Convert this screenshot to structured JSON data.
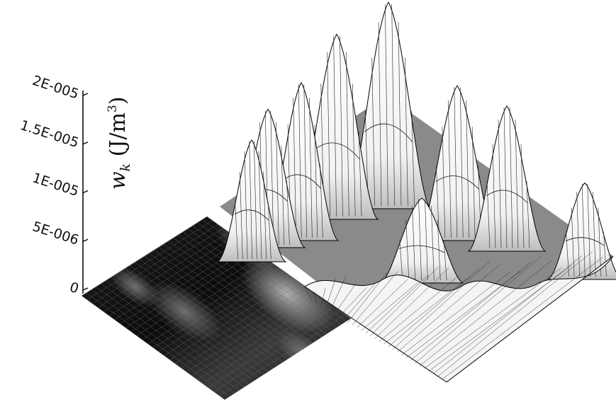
{
  "chart_data": {
    "type": "surface",
    "title": "",
    "zlabel_var": "w",
    "zlabel_sub": "k",
    "zlabel_unit_open": " (J/m",
    "zlabel_unit_exp": "3",
    "zlabel_unit_close": ")",
    "zlim": [
      0,
      2e-05
    ],
    "zticks": [
      {
        "value": 0,
        "label": "0"
      },
      {
        "value": 5e-06,
        "label": "5E-006"
      },
      {
        "value": 1e-05,
        "label": "1E-005"
      },
      {
        "value": 1.5e-05,
        "label": "1.5E-005"
      },
      {
        "value": 2e-05,
        "label": "2E-005"
      }
    ],
    "colors": {
      "left_surface_dark": "#141414",
      "left_surface_light": "#9c9c9c",
      "right_surface_face": "#ffffff",
      "right_surface_shadow": "#c4c4c4",
      "base_floor": "#8a8a8a",
      "grid_line": "#000000"
    },
    "surfaces": [
      {
        "name": "",
        "rendering": "shaded flat surface",
        "peak_values": [
          1.2e-06,
          1.6e-06,
          1.4e-06,
          1.8e-06,
          1e-06
        ]
      },
      {
        "name": "",
        "rendering": "wireframe surface with peaks",
        "peak_values": [
          2.05e-05,
          1.83e-05,
          1.55e-05,
          1.52e-05,
          1.42e-05,
          1.35e-05,
          1.18e-05,
          9.2e-06,
          8e-06
        ]
      }
    ]
  }
}
